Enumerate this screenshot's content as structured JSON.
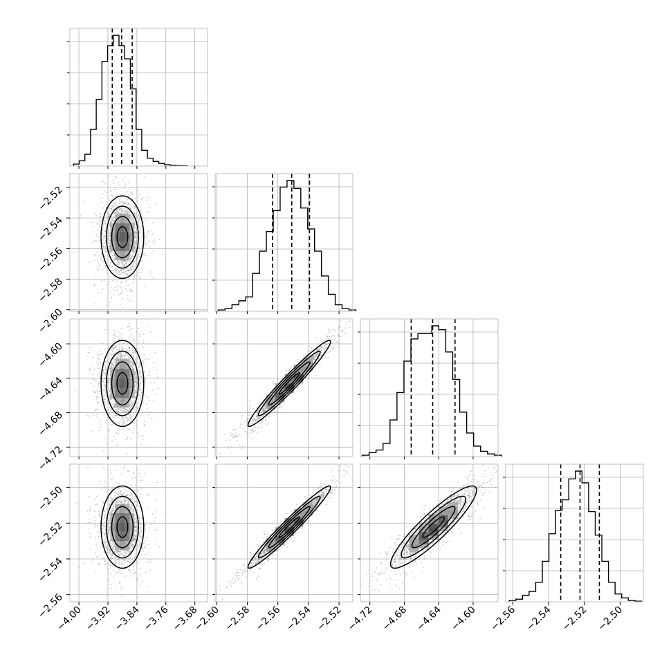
{
  "chart_data": {
    "type": "corner",
    "n_params": 4,
    "axis_limits": [
      [
        -4.025,
        -3.645
      ],
      [
        -2.601,
        -2.511
      ],
      [
        -4.731,
        -4.571
      ],
      [
        -2.564,
        -2.487
      ]
    ],
    "x_ticks": [
      {
        "values": [
          -4.0,
          -3.92,
          -3.84,
          -3.76,
          -3.68
        ],
        "labels": [
          "−4.00",
          "−3.92",
          "−3.84",
          "−3.76",
          "−3.68"
        ]
      },
      {
        "values": [
          -2.6,
          -2.58,
          -2.56,
          -2.54,
          -2.52
        ],
        "labels": [
          "−2.60",
          "−2.58",
          "−2.56",
          "−2.54",
          "−2.52"
        ]
      },
      {
        "values": [
          -4.72,
          -4.68,
          -4.64,
          -4.6
        ],
        "labels": [
          "−4.72",
          "−4.68",
          "−4.64",
          "−4.60"
        ]
      },
      {
        "values": [
          -2.56,
          -2.54,
          -2.52,
          -2.5
        ],
        "labels": [
          "−2.56",
          "−2.54",
          "−2.52",
          "−2.50"
        ]
      }
    ],
    "y_ticks": [
      null,
      {
        "values": [
          -2.52,
          -2.54,
          -2.56,
          -2.58,
          -2.6
        ],
        "labels": [
          "−2.52",
          "−2.54",
          "−2.56",
          "−2.58",
          "−2.60"
        ]
      },
      {
        "values": [
          -4.6,
          -4.64,
          -4.68,
          -4.72
        ],
        "labels": [
          "−4.60",
          "−4.64",
          "−4.68",
          "−4.72"
        ]
      },
      {
        "values": [
          -2.5,
          -2.52,
          -2.54,
          -2.56
        ],
        "labels": [
          "−2.50",
          "−2.52",
          "−2.54",
          "−2.56"
        ]
      }
    ],
    "histograms": [
      {
        "edges_start": -4.015,
        "bin_width": 0.0157,
        "counts": [
          0.015,
          0.04,
          0.09,
          0.28,
          0.51,
          0.8,
          0.92,
          1.0,
          0.92,
          0.82,
          0.59,
          0.28,
          0.12,
          0.06,
          0.035,
          0.02,
          0.01,
          0.005,
          0.003,
          0.002
        ],
        "quantiles": [
          -3.908,
          -3.882,
          -3.853
        ]
      },
      {
        "edges_start": -2.599,
        "bin_width": 0.0045,
        "counts": [
          0.01,
          0.02,
          0.05,
          0.08,
          0.11,
          0.29,
          0.46,
          0.61,
          0.77,
          0.95,
          1.0,
          0.94,
          0.79,
          0.63,
          0.46,
          0.27,
          0.13,
          0.05,
          0.02,
          0.01
        ],
        "quantiles": [
          -2.5635,
          -2.5509,
          -2.5393
        ]
      },
      {
        "edges_start": -4.729,
        "bin_width": 0.0081,
        "counts": [
          0.01,
          0.03,
          0.05,
          0.1,
          0.28,
          0.49,
          0.73,
          0.9,
          0.94,
          0.94,
          1.0,
          0.97,
          0.8,
          0.59,
          0.34,
          0.18,
          0.08,
          0.04,
          0.02,
          0.01
        ],
        "quantiles": [
          -4.672,
          -4.647,
          -4.621
        ]
      },
      {
        "edges_start": -2.562,
        "bin_width": 0.0037,
        "counts": [
          0.01,
          0.02,
          0.05,
          0.08,
          0.15,
          0.31,
          0.52,
          0.7,
          0.78,
          0.94,
          1.0,
          0.91,
          0.69,
          0.51,
          0.31,
          0.15,
          0.06,
          0.03,
          0.01,
          0.005
        ],
        "quantiles": [
          -2.5332,
          -2.5224,
          -2.5116
        ]
      }
    ],
    "pairs": [
      {
        "row": 1,
        "col": 0,
        "mean": [
          -3.88,
          -2.5525
        ],
        "sd": [
          0.0295,
          0.0135
        ],
        "rho": 0.0
      },
      {
        "row": 2,
        "col": 0,
        "mean": [
          -3.88,
          -4.646
        ],
        "sd": [
          0.0295,
          0.025
        ],
        "rho": 0.0
      },
      {
        "row": 2,
        "col": 1,
        "mean": [
          -2.5525,
          -4.646
        ],
        "sd": [
          0.0135,
          0.025
        ],
        "rho": 0.97
      },
      {
        "row": 3,
        "col": 0,
        "mean": [
          -3.88,
          -2.5222
        ],
        "sd": [
          0.0295,
          0.0115
        ],
        "rho": 0.0
      },
      {
        "row": 3,
        "col": 1,
        "mean": [
          -2.5525,
          -2.5222
        ],
        "sd": [
          0.0135,
          0.0115
        ],
        "rho": 0.97
      },
      {
        "row": 3,
        "col": 2,
        "mean": [
          -4.646,
          -2.5222
        ],
        "sd": [
          0.025,
          0.0115
        ],
        "rho": 0.9
      }
    ],
    "contour_levels_sigma": [
      0.5,
      1.0,
      1.5,
      2.0
    ],
    "grid": true,
    "colors": {
      "line": "#000000",
      "points": "#9a9a9a",
      "grid": "#b0b0b0",
      "frame": "#bdbdbd"
    }
  }
}
